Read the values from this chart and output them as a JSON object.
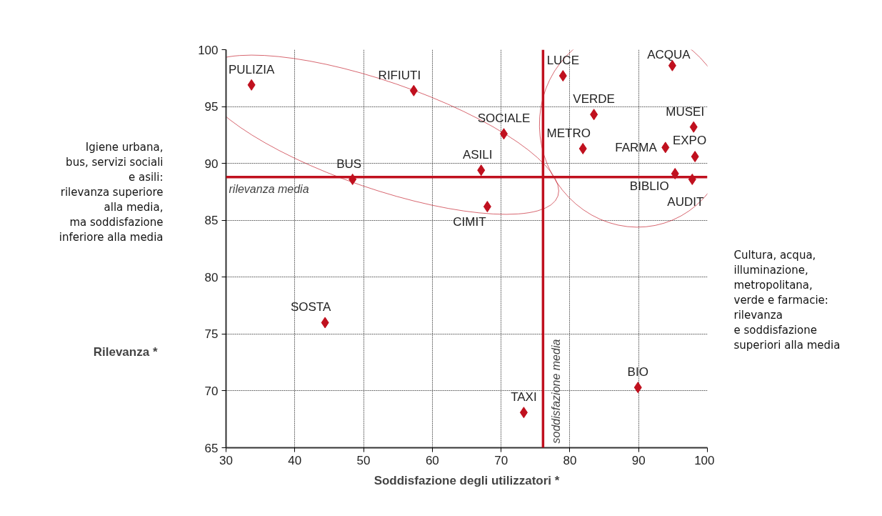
{
  "chart_data": {
    "type": "scatter",
    "xlabel": "Soddisfazione degli utilizzatori *",
    "ylabel": "Rilevanza *",
    "xlim": [
      30,
      100
    ],
    "xticks": [
      30,
      40,
      50,
      60,
      70,
      80,
      90,
      100
    ],
    "ylim": [
      65,
      100
    ],
    "yticks": [
      65,
      70,
      75,
      80,
      85,
      90,
      95,
      100
    ],
    "grid": true,
    "marker": "diamond",
    "series": [
      {
        "color": "#c0101e",
        "x": [
          33.7,
          57.3,
          70.4,
          67.1,
          48.4,
          68.0,
          44.4,
          73.3,
          79.0,
          94.9,
          83.5,
          98.0,
          81.9,
          93.9,
          98.2,
          95.3,
          97.8,
          89.9
        ],
        "values": [
          96.9,
          96.4,
          92.6,
          89.4,
          88.6,
          86.2,
          76.0,
          68.1,
          97.7,
          98.6,
          94.3,
          93.2,
          91.3,
          91.4,
          90.6,
          89.1,
          88.6,
          70.3
        ]
      }
    ],
    "ref_lines": [
      {
        "axis": "y",
        "value": 88.8,
        "label": "rilevanza media",
        "color": "#c0101e"
      },
      {
        "axis": "x",
        "value": 76.1,
        "label": "soddisfazione media",
        "color": "#c0101e"
      }
    ],
    "annotations": [
      {
        "text": "PULIZIA",
        "x": 33.7,
        "y": 96.9
      },
      {
        "text": "RIFIUTI",
        "x": 57.3,
        "y": 96.4
      },
      {
        "text": "SOCIALE",
        "x": 70.4,
        "y": 92.6
      },
      {
        "text": "ASILI",
        "x": 67.1,
        "y": 89.4
      },
      {
        "text": "BUS",
        "x": 48.4,
        "y": 88.6
      },
      {
        "text": "CIMIT",
        "x": 68.0,
        "y": 86.2
      },
      {
        "text": "SOSTA",
        "x": 44.4,
        "y": 76.0
      },
      {
        "text": "TAXI",
        "x": 73.3,
        "y": 68.1
      },
      {
        "text": "LUCE",
        "x": 79.0,
        "y": 97.7
      },
      {
        "text": "ACQUA",
        "x": 94.9,
        "y": 98.6
      },
      {
        "text": "VERDE",
        "x": 83.5,
        "y": 94.3
      },
      {
        "text": "MUSEI",
        "x": 98.0,
        "y": 93.2
      },
      {
        "text": "METRO",
        "x": 81.9,
        "y": 91.3
      },
      {
        "text": "FARMA",
        "x": 93.9,
        "y": 91.4
      },
      {
        "text": "EXPO",
        "x": 98.2,
        "y": 90.6
      },
      {
        "text": "BIBLIO",
        "x": 95.3,
        "y": 89.1
      },
      {
        "text": "AUDIT",
        "x": 97.8,
        "y": 88.6
      },
      {
        "text": "BIO",
        "x": 89.9,
        "y": 70.3
      },
      "Igiene urbana,\nbus, servizi sociali\ne asili:",
      "rilevanza superiore\nalla media,\nma soddisfazione\ninferiore alla media",
      "Cultura, acqua,\nilluminazione,\nmetropolitana,\nverde e farmacie:",
      "rilevanza\ne soddisfazione\nsuperiori alla media"
    ]
  }
}
